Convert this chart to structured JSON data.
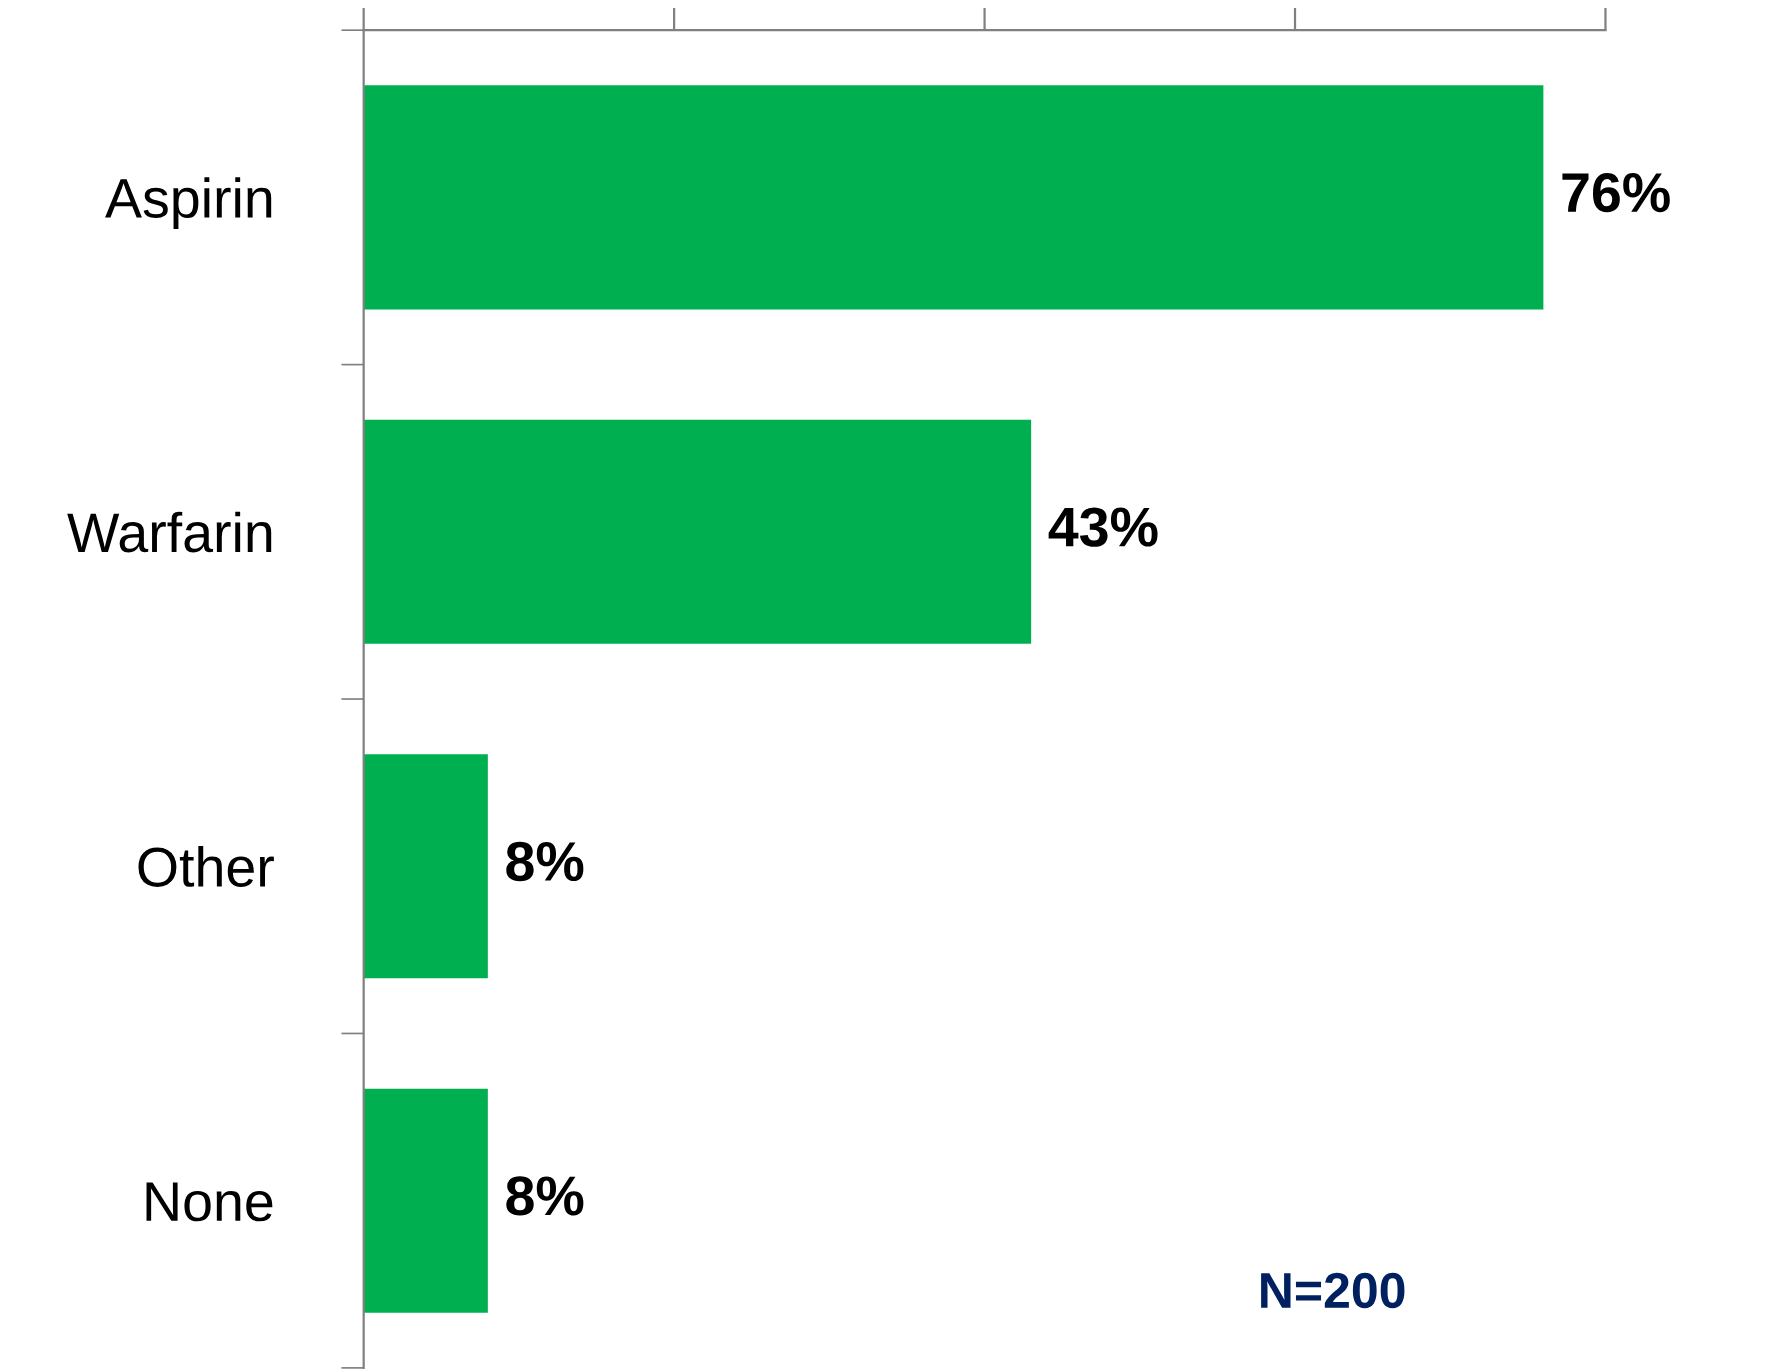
{
  "chart_data": {
    "type": "bar",
    "orientation": "horizontal",
    "categories": [
      "Aspirin",
      "Warfarin",
      "Other",
      "None"
    ],
    "values": [
      76,
      43,
      8,
      8
    ],
    "color": "#00b050",
    "value_labels": [
      "76%",
      "43%",
      "8%",
      "8%"
    ],
    "xlim": [
      0,
      80
    ],
    "xticks": [
      {
        "value": 0,
        "label": null
      },
      {
        "value": 20,
        "label": null
      },
      {
        "value": 40,
        "label": null
      },
      {
        "value": 60,
        "label": null
      },
      {
        "value": 80,
        "label": null
      }
    ],
    "tick_labels": "y",
    "grid": false,
    "legend": false,
    "annotations": [
      "N=200"
    ]
  }
}
